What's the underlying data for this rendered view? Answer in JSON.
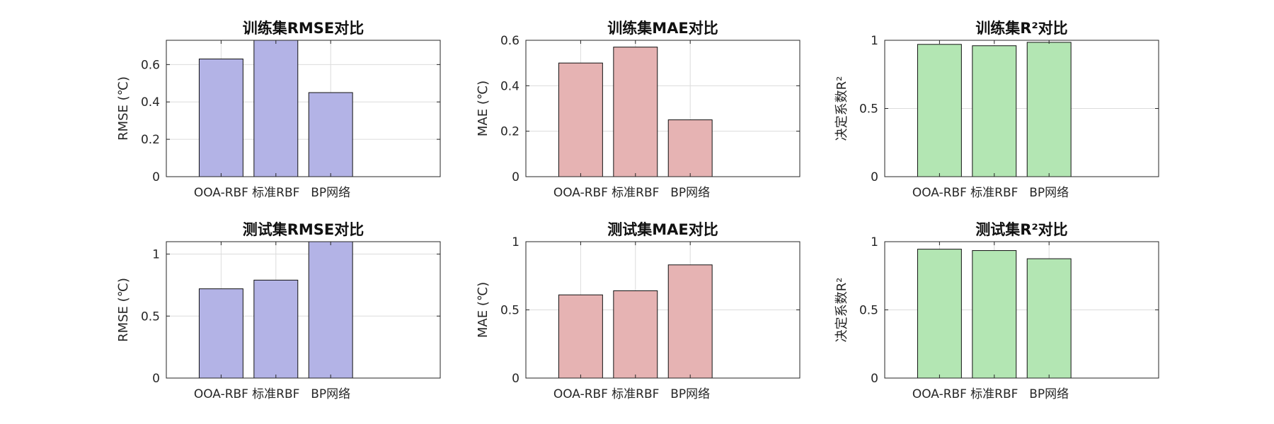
{
  "chart_data": [
    {
      "type": "bar",
      "title": "训练集RMSE对比",
      "ylabel": "RMSE (℃)",
      "categories": [
        "OOA-RBF",
        "标准RBF",
        "BP网络"
      ],
      "values": [
        0.63,
        0.73,
        0.45
      ],
      "ylim": [
        0,
        0.73
      ],
      "yticks": [
        0,
        0.2,
        0.4,
        0.6
      ],
      "ytick_labels": [
        "0",
        "0.2",
        "0.4",
        "0.6"
      ],
      "color": "#b3b3e6",
      "grid": true
    },
    {
      "type": "bar",
      "title": "训练集MAE对比",
      "ylabel": "MAE (℃)",
      "categories": [
        "OOA-RBF",
        "标准RBF",
        "BP网络"
      ],
      "values": [
        0.5,
        0.57,
        0.25
      ],
      "ylim": [
        0,
        0.6
      ],
      "yticks": [
        0,
        0.2,
        0.4,
        0.6
      ],
      "ytick_labels": [
        "0",
        "0.2",
        "0.4",
        "0.6"
      ],
      "color": "#e6b3b3",
      "grid": true
    },
    {
      "type": "bar",
      "title": "训练集R²对比",
      "ylabel": "决定系数R²",
      "categories": [
        "OOA-RBF",
        "标准RBF",
        "BP网络"
      ],
      "values": [
        0.97,
        0.96,
        0.985
      ],
      "ylim": [
        0,
        1
      ],
      "yticks": [
        0,
        0.5,
        1
      ],
      "ytick_labels": [
        "0",
        "0.5",
        "1"
      ],
      "color": "#b3e6b3",
      "grid": true
    },
    {
      "type": "bar",
      "title": "测试集RMSE对比",
      "ylabel": "RMSE (℃)",
      "categories": [
        "OOA-RBF",
        "标准RBF",
        "BP网络"
      ],
      "values": [
        0.72,
        0.79,
        1.1
      ],
      "ylim": [
        0,
        1.1
      ],
      "yticks": [
        0,
        0.5,
        1
      ],
      "ytick_labels": [
        "0",
        "0.5",
        "1"
      ],
      "color": "#b3b3e6",
      "grid": true
    },
    {
      "type": "bar",
      "title": "测试集MAE对比",
      "ylabel": "MAE (℃)",
      "categories": [
        "OOA-RBF",
        "标准RBF",
        "BP网络"
      ],
      "values": [
        0.61,
        0.64,
        0.83
      ],
      "ylim": [
        0,
        1
      ],
      "yticks": [
        0,
        0.5,
        1
      ],
      "ytick_labels": [
        "0",
        "0.5",
        "1"
      ],
      "color": "#e6b3b3",
      "grid": true
    },
    {
      "type": "bar",
      "title": "测试集R²对比",
      "ylabel": "决定系数R²",
      "categories": [
        "OOA-RBF",
        "标准RBF",
        "BP网络"
      ],
      "values": [
        0.945,
        0.935,
        0.875
      ],
      "ylim": [
        0,
        1
      ],
      "yticks": [
        0,
        0.5,
        1
      ],
      "ytick_labels": [
        "0",
        "0.5",
        "1"
      ],
      "color": "#b3e6b3",
      "grid": true
    }
  ]
}
